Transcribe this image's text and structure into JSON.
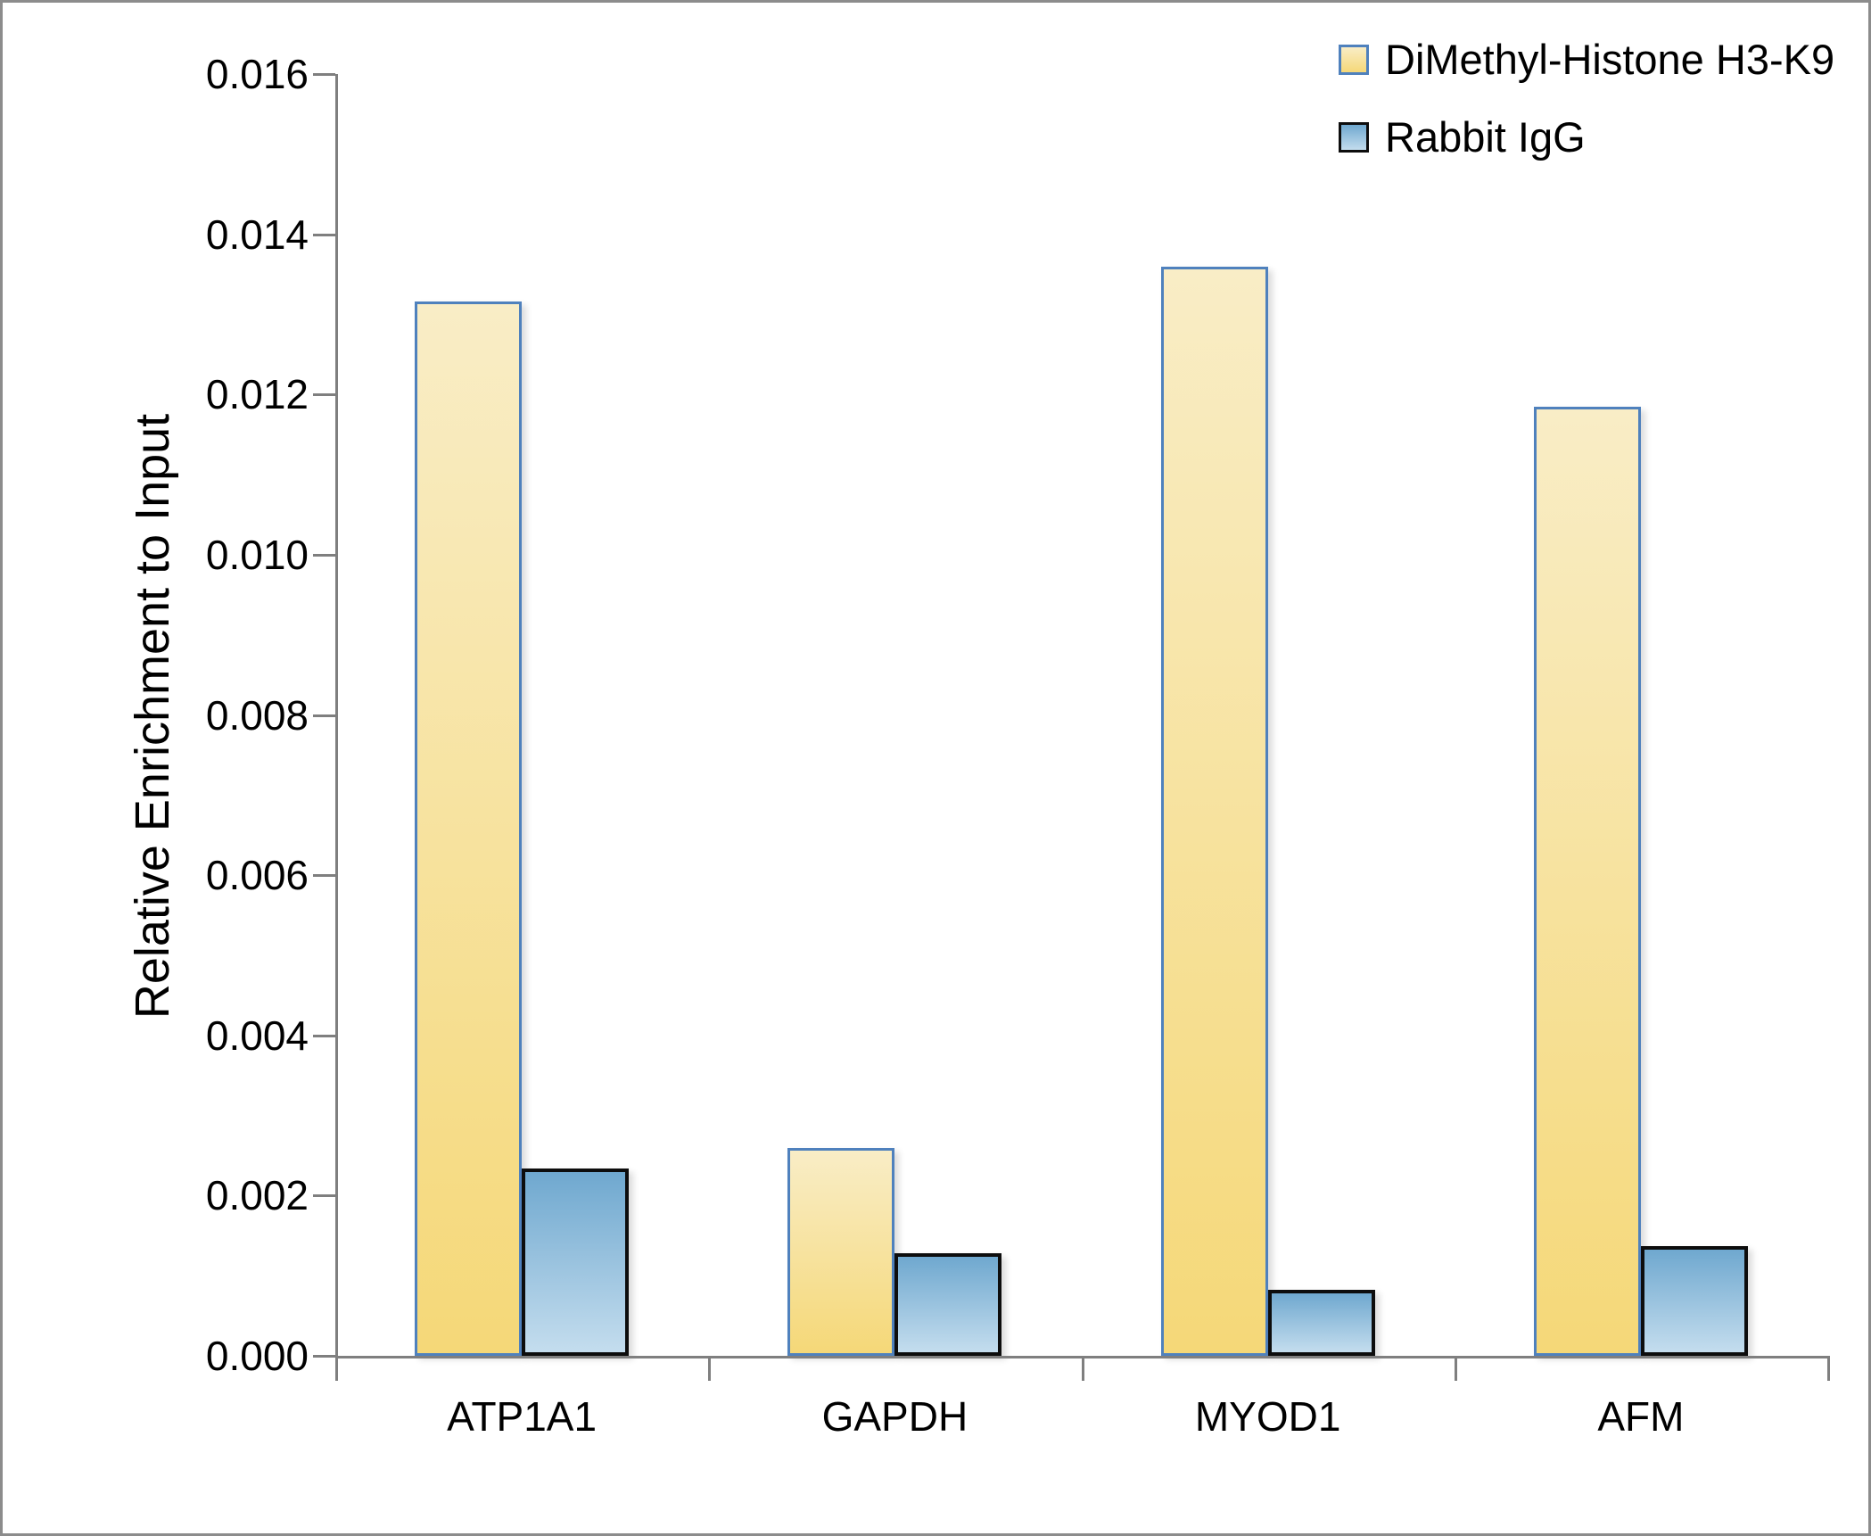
{
  "chart_data": {
    "type": "bar",
    "title": "",
    "xlabel": "",
    "ylabel": "Relative Enrichment to Input",
    "ylim": [
      0,
      0.016
    ],
    "ytick_step": 0.002,
    "ytick_decimals": 3,
    "grid": false,
    "legend_position": "top-right",
    "categories": [
      "ATP1A1",
      "GAPDH",
      "MYOD1",
      "AFM"
    ],
    "series": [
      {
        "name": "DiMethyl-Histone H3-K9",
        "values": [
          0.01316,
          0.00259,
          0.0136,
          0.01185
        ],
        "fill_top": "#f9edc6",
        "fill_bottom": "#f5d878",
        "border_color": "#4f81bd",
        "border_px": 3
      },
      {
        "name": "Rabbit IgG",
        "values": [
          0.00234,
          0.00128,
          0.00082,
          0.00137
        ],
        "fill_top": "#6fa8cf",
        "fill_bottom": "#c4ddee",
        "border_color": "#0d0d0d",
        "border_px": 4
      }
    ]
  },
  "colors": {
    "axis": "#7f7f7f",
    "outer_border": "#8c8c8c",
    "text": "#000000",
    "background": "#ffffff"
  }
}
